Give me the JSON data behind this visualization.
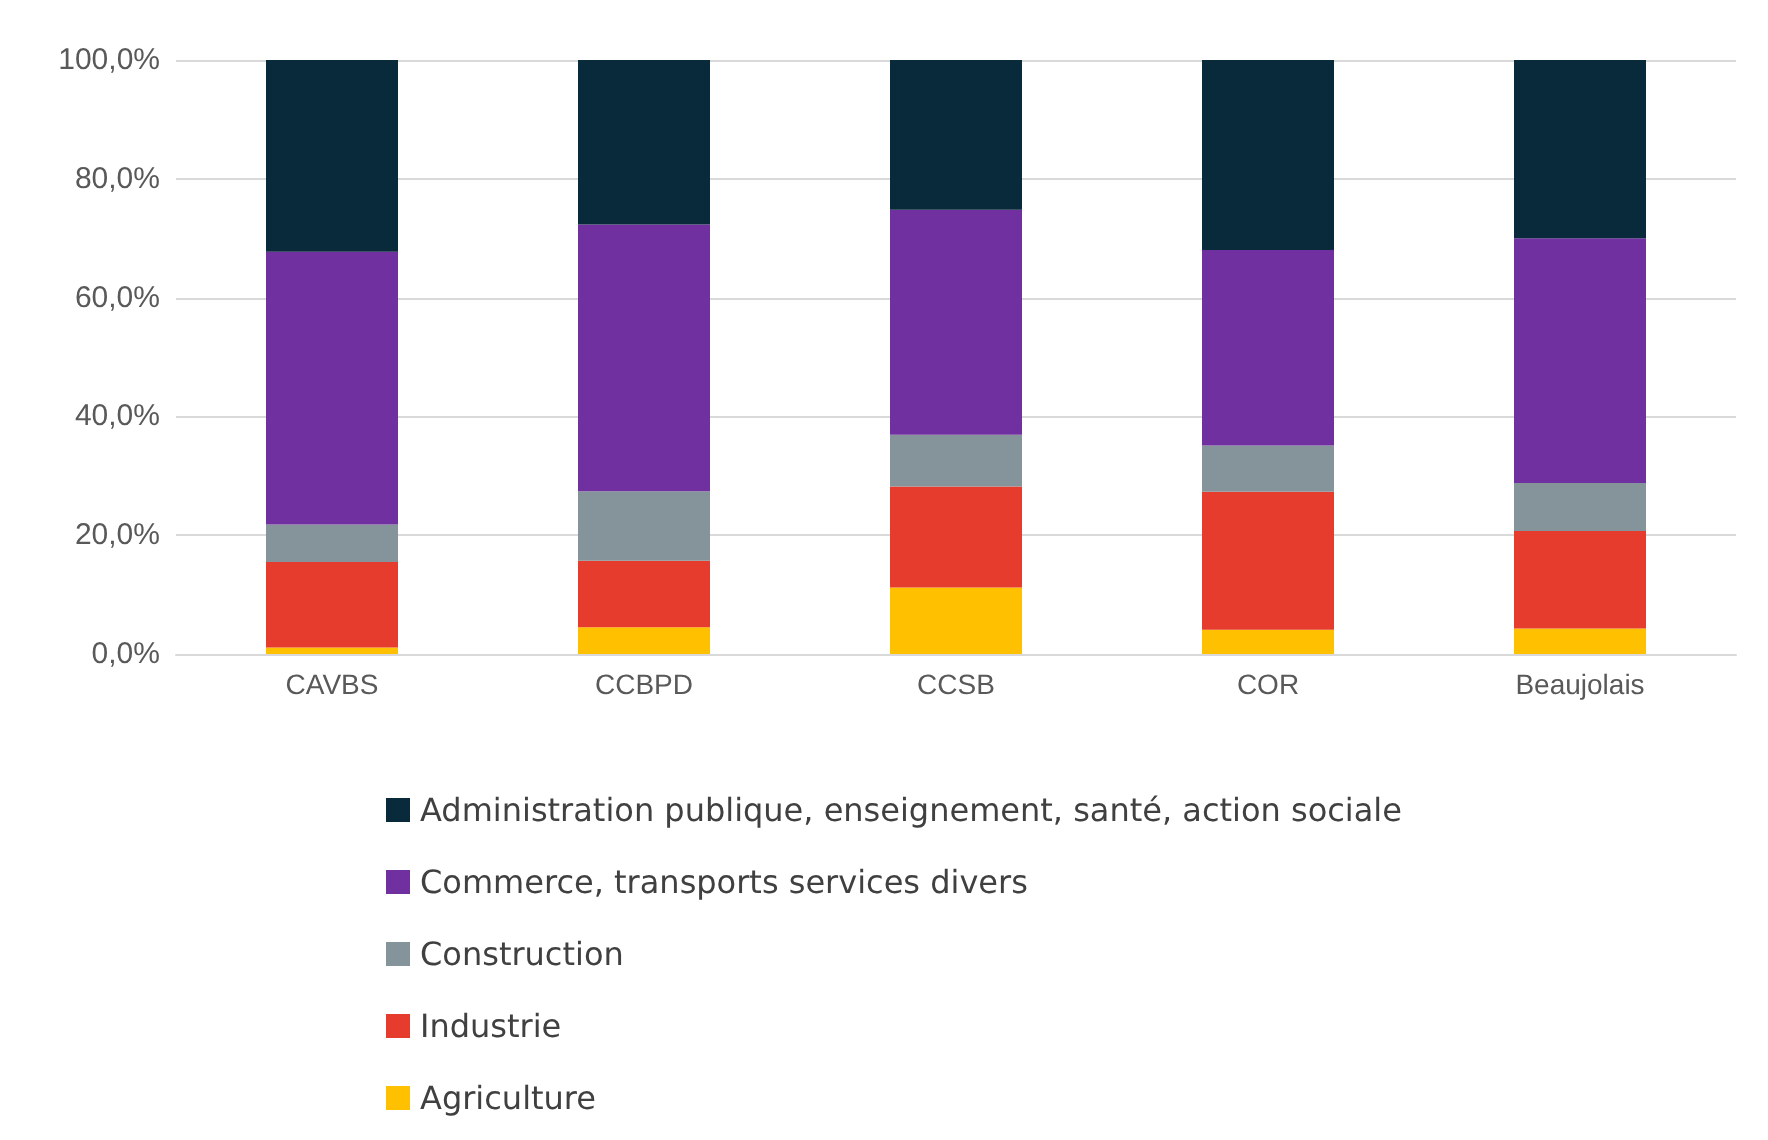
{
  "chart_data": {
    "type": "bar",
    "stacked": true,
    "categories": [
      "CAVBS",
      "CCBPD",
      "CCSB",
      "COR",
      "Beaujolais"
    ],
    "series": [
      {
        "name": "Agriculture",
        "color": "#ffc000",
        "values": [
          1.1,
          4.5,
          11.2,
          4.1,
          4.3
        ]
      },
      {
        "name": "Industrie",
        "color": "#e53c2e",
        "values": [
          14.4,
          11.2,
          17.0,
          23.2,
          16.4
        ]
      },
      {
        "name": "Construction",
        "color": "#85949b",
        "values": [
          6.3,
          11.7,
          8.7,
          7.8,
          8.1
        ]
      },
      {
        "name": "Commerce, transports services divers",
        "color": "#7030a0",
        "values": [
          45.9,
          44.9,
          37.9,
          32.9,
          41.2
        ]
      },
      {
        "name": "Administration publique, enseignement, santé, action sociale",
        "color": "#082a3a",
        "values": [
          32.3,
          27.7,
          25.2,
          32.0,
          30.0
        ]
      }
    ],
    "ylim": [
      0,
      100
    ],
    "yticks": [
      {
        "value": 0,
        "label": "0,0%"
      },
      {
        "value": 20,
        "label": "20,0%"
      },
      {
        "value": 40,
        "label": "40,0%"
      },
      {
        "value": 60,
        "label": "60,0%"
      },
      {
        "value": 80,
        "label": "80,0%"
      },
      {
        "value": 100,
        "label": "100,0%"
      }
    ],
    "grid": "y",
    "legend": "bottom"
  }
}
